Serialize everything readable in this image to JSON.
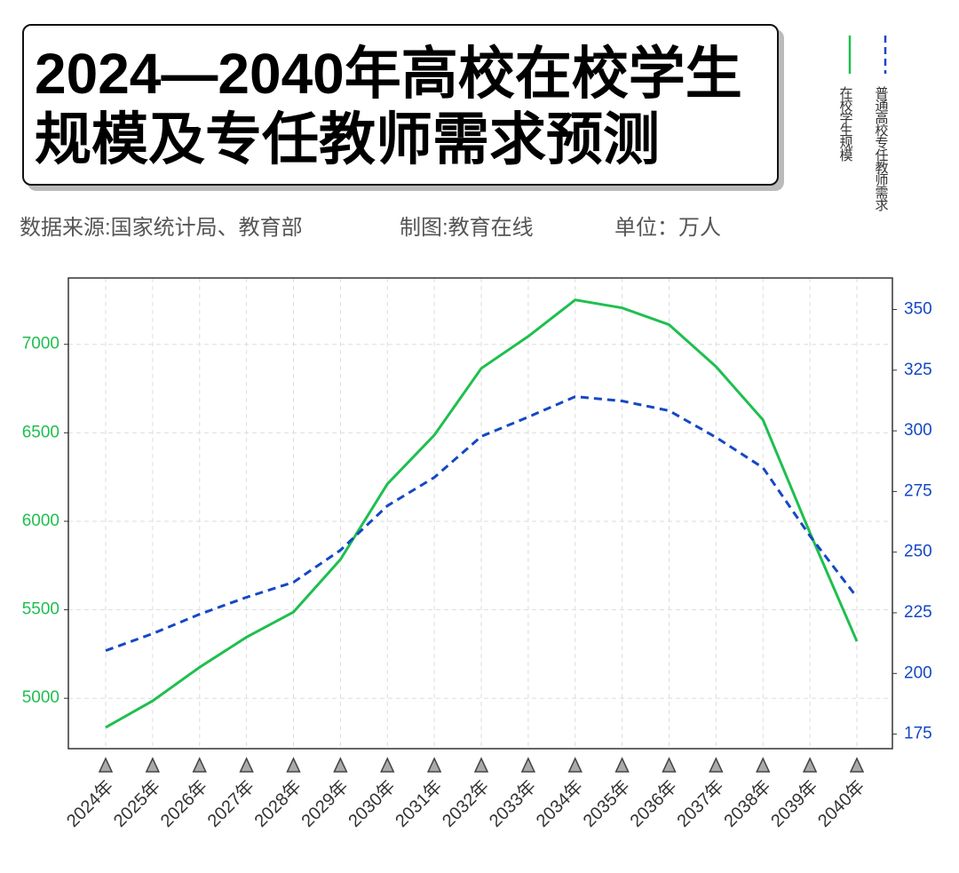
{
  "chart_data": {
    "type": "line",
    "title_lines": [
      "2024—2040年高校在校学生",
      "规模及专任教师需求预测"
    ],
    "source": "数据来源:国家统计局、教育部",
    "credit": "制图:教育在线",
    "unit": "单位：万人",
    "categories": [
      "2024年",
      "2025年",
      "2026年",
      "2027年",
      "2028年",
      "2029年",
      "2030年",
      "2031年",
      "2032年",
      "2033年",
      "2034年",
      "2035年",
      "2036年",
      "2037年",
      "2038年",
      "2039年",
      "2040年"
    ],
    "series": [
      {
        "name": "在校学生规模",
        "color": "#1fbf4f",
        "dashed": false,
        "values": [
          4835,
          4985,
          5175,
          5345,
          5487,
          5784,
          6211,
          6487,
          6864,
          7045,
          7251,
          7206,
          7111,
          6874,
          6573,
          5935,
          5322
        ]
      },
      {
        "name": "普通高校专任教师需求",
        "color": "#1448c4",
        "dashed": true,
        "axis": "y2",
        "values": [
          209.4,
          216.4,
          224.4,
          231.4,
          237.6,
          250.8,
          269.1,
          280.8,
          297.7,
          305.7,
          314.1,
          312.3,
          308.3,
          297.3,
          284.8,
          256.7,
          231.4
        ]
      }
    ],
    "ylim": [
      4715,
      7375
    ],
    "yticks": [
      5000,
      5500,
      6000,
      6500,
      7000
    ],
    "y2lim": [
      169,
      363
    ],
    "y2ticks": [
      175,
      200,
      225,
      250,
      275,
      300,
      325,
      350
    ],
    "grid": true
  }
}
